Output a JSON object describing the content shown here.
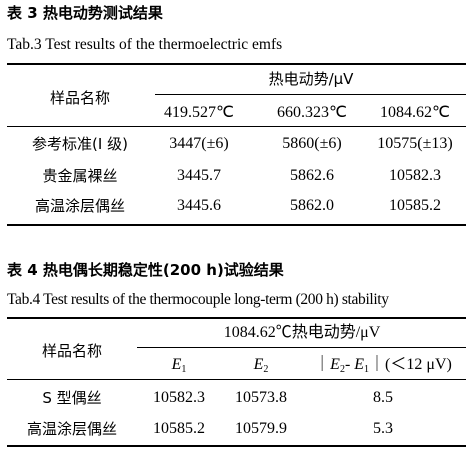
{
  "table3": {
    "caption_cn": "表 3  热电动势测试结果",
    "caption_en": "Tab.3 Test results of the thermoelectric emfs",
    "sample_header": "样品名称",
    "group_header": "热电动势/μV",
    "temps": [
      "419.527℃",
      "660.323℃",
      "1084.62℃"
    ],
    "rows": [
      {
        "name": "参考标准(I 级)",
        "values": [
          "3447(±6)",
          "5860(±6)",
          "10575(±13)"
        ]
      },
      {
        "name": "贵金属裸丝",
        "values": [
          "3445.7",
          "5862.6",
          "10582.3"
        ]
      },
      {
        "name": "高温涂层偶丝",
        "values": [
          "3445.6",
          "5862.0",
          "10585.2"
        ]
      }
    ]
  },
  "table4": {
    "caption_cn": "表 4  热电偶长期稳定性(200 h)试验结果",
    "caption_en": "Tab.4 Test results of the thermocouple long-term (200 h) stability",
    "sample_header": "样品名称",
    "group_header": "1084.62℃热电动势/μV",
    "col_e1": {
      "sym": "E",
      "sub": "1"
    },
    "col_e2": {
      "sym": "E",
      "sub": "2"
    },
    "col_diff": {
      "pre": "｜",
      "s1": "E",
      "sub1": "2",
      "mid": "- ",
      "s2": "E",
      "sub2": "1",
      "post": "｜(＜12 μV)"
    },
    "rows": [
      {
        "name": "S 型偶丝",
        "values": [
          "10582.3",
          "10573.8",
          "8.5"
        ]
      },
      {
        "name": "高温涂层偶丝",
        "values": [
          "10585.2",
          "10579.9",
          "5.3"
        ]
      }
    ]
  }
}
